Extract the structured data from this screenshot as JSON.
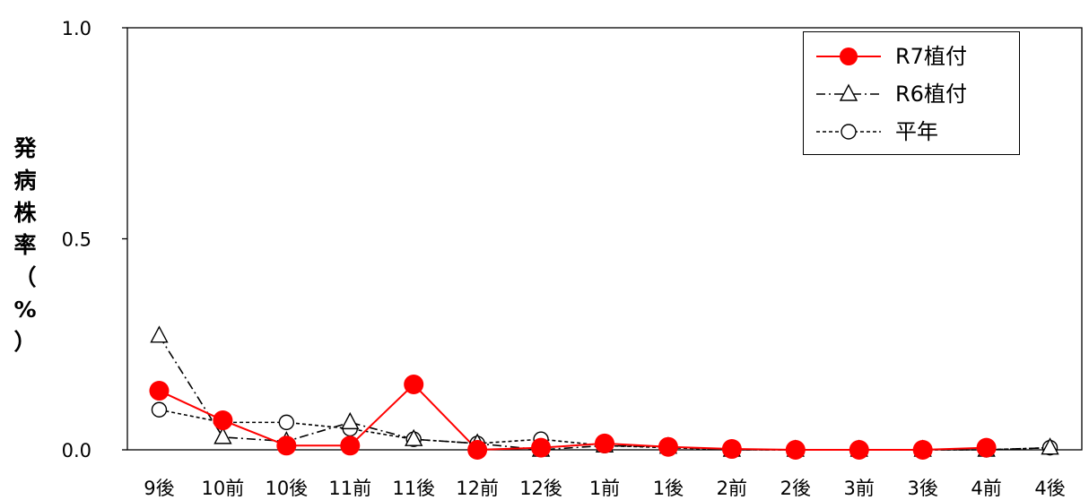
{
  "chart_data": {
    "type": "line",
    "categories": [
      "9後",
      "10前",
      "10後",
      "11前",
      "11後",
      "12前",
      "12後",
      "1前",
      "1後",
      "2前",
      "2後",
      "3前",
      "3後",
      "4前",
      "4後"
    ],
    "ylim": [
      0,
      1.0
    ],
    "yticks": [
      "0.0",
      "0.5",
      "1.0"
    ],
    "ylabel": "発病株率（%）",
    "legend_position": "top-right",
    "grid": false,
    "series": [
      {
        "name": "R7植付",
        "color": "#ff0000",
        "marker": "filled-circle",
        "line": "solid",
        "values": [
          0.14,
          0.07,
          0.01,
          0.01,
          0.155,
          0.0,
          0.005,
          0.015,
          0.007,
          0.002,
          0.0,
          0.0,
          0.0,
          0.005,
          null
        ]
      },
      {
        "name": "R6植付",
        "color": "#000000",
        "marker": "open-triangle",
        "line": "dashdot",
        "values": [
          0.27,
          0.03,
          0.02,
          0.065,
          0.025,
          0.015,
          0.0,
          0.01,
          0.007,
          0.0,
          0.0,
          0.0,
          0.0,
          0.0,
          0.005
        ]
      },
      {
        "name": "平年",
        "color": "#000000",
        "marker": "open-circle",
        "line": "dashed",
        "values": [
          0.095,
          0.065,
          0.065,
          0.05,
          0.025,
          0.015,
          0.025,
          0.01,
          0.005,
          0.0,
          0.0,
          0.0,
          0.0,
          0.0,
          0.005
        ]
      }
    ]
  }
}
